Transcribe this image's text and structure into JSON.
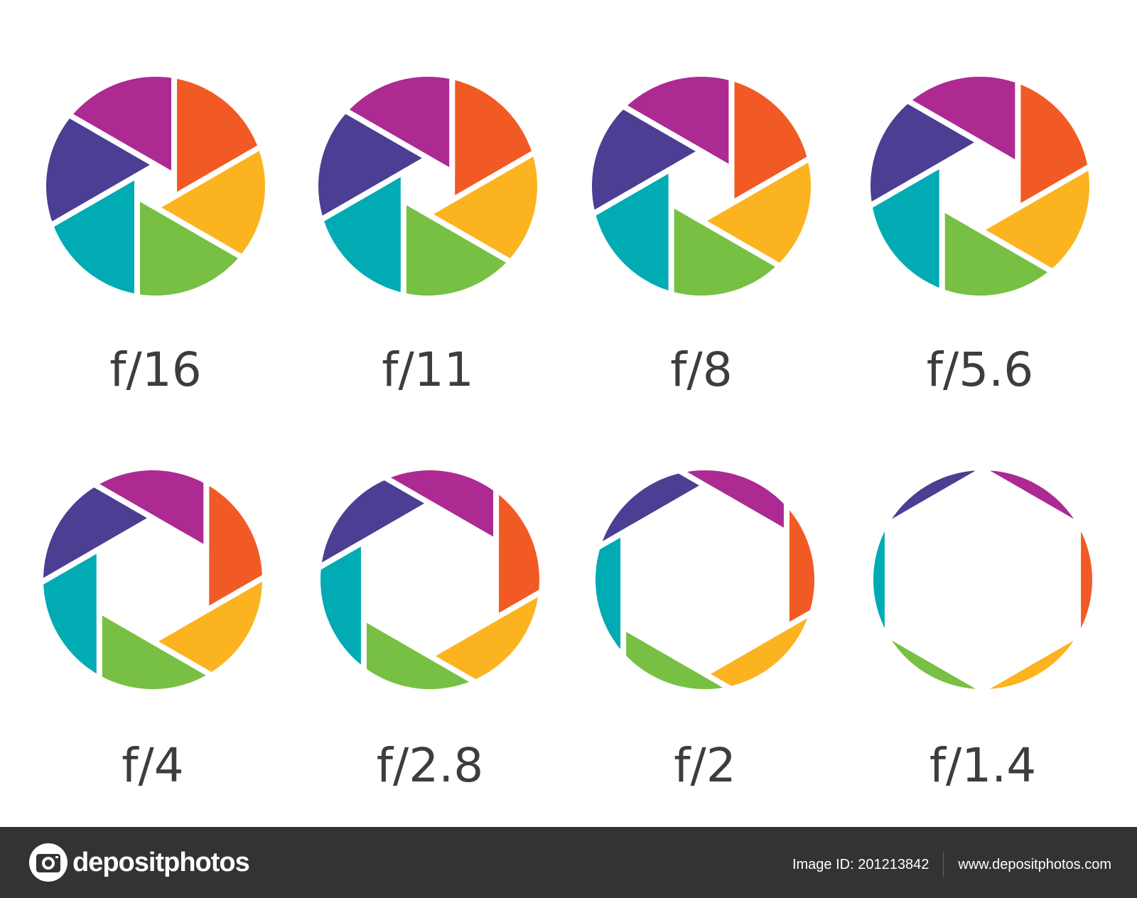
{
  "apertures": [
    {
      "label": "f/16",
      "opening": 0.19
    },
    {
      "label": "f/11",
      "opening": 0.25
    },
    {
      "label": "f/8",
      "opening": 0.31
    },
    {
      "label": "f/5.6",
      "opening": 0.39
    },
    {
      "label": "f/4",
      "opening": 0.55
    },
    {
      "label": "f/2.8",
      "opening": 0.68
    },
    {
      "label": "f/2",
      "opening": 0.84
    },
    {
      "label": "f/1.4",
      "opening": 0.98
    }
  ],
  "blade_colors": [
    "#f15a24",
    "#fbb41f",
    "#77c043",
    "#00abb4",
    "#4b3e93",
    "#ac2a92"
  ],
  "label_color": "#3d3d3d",
  "footer": {
    "brand": "depositphotos",
    "image_id": "Image ID: 201213842",
    "website": "www.depositphotos.com",
    "background": "#333333"
  }
}
